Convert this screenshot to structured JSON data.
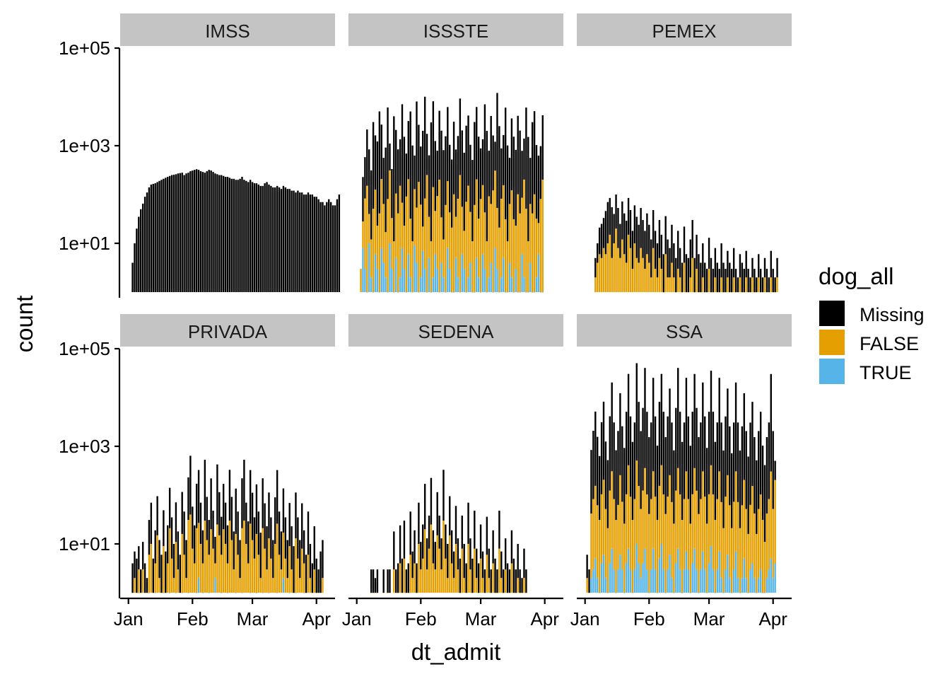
{
  "chart_data": {
    "type": "bar",
    "subtype": "stacked, faceted",
    "x_label": "dt_admit",
    "y_label": "count",
    "y_scale": "log10",
    "y_ticks": [
      "1e+01",
      "1e+03",
      "1e+05"
    ],
    "y_tick_values": [
      10,
      1000,
      100000
    ],
    "ylim": [
      1,
      100000
    ],
    "x_ticks": [
      "Jan",
      "Feb",
      "Mar",
      "Apr"
    ],
    "x_tick_values": [
      "2020-01-01",
      "2020-02-01",
      "2020-03-01",
      "2020-04-01"
    ],
    "xlim": [
      "2019-12-28",
      "2020-04-10"
    ],
    "grid": false,
    "legend": {
      "title": "dog_all",
      "placement": "right",
      "items": [
        {
          "label": "Missing",
          "color": "#000000"
        },
        {
          "label": "FALSE",
          "color": "#E69F00"
        },
        {
          "label": "TRUE",
          "color": "#56B4E9"
        }
      ]
    },
    "strip_fill": "#C4C4C4",
    "facets": [
      {
        "name": "IMSS",
        "start": "2020-01-03",
        "day_step": 1,
        "missing": [
          4,
          10,
          20,
          35,
          50,
          65,
          90,
          110,
          140,
          160,
          165,
          170,
          180,
          190,
          200,
          210,
          220,
          230,
          240,
          250,
          255,
          260,
          270,
          275,
          280,
          250,
          270,
          280,
          300,
          310,
          320,
          330,
          320,
          300,
          290,
          280,
          300,
          320,
          310,
          290,
          270,
          260,
          250,
          250,
          240,
          230,
          230,
          220,
          210,
          210,
          200,
          200,
          210,
          230,
          200,
          190,
          180,
          200,
          180,
          170,
          170,
          160,
          150,
          150,
          170,
          180,
          160,
          150,
          140,
          140,
          150,
          140,
          130,
          150,
          140,
          130,
          130,
          120,
          120,
          110,
          120,
          110,
          110,
          100,
          100,
          110,
          100,
          100,
          90,
          90,
          80,
          70,
          70,
          60,
          70,
          80,
          70,
          60,
          60,
          80,
          100
        ],
        "false": null,
        "true": null
      },
      {
        "name": "ISSSTE",
        "start": "2020-01-02",
        "day_step": 1,
        "missing": [
          0,
          0,
          200,
          500,
          2000,
          800,
          300,
          3000,
          1500,
          1200,
          5000,
          2500,
          500,
          900,
          6000,
          800,
          300,
          4000,
          2000,
          800,
          1200,
          7000,
          1500,
          600,
          3000,
          5000,
          1000,
          500,
          8000,
          2500,
          900,
          2000,
          10000,
          1500,
          600,
          3000,
          8000,
          1200,
          700,
          5000,
          2000,
          800,
          1500,
          6000,
          1000,
          500,
          3000,
          800,
          1500,
          9000,
          2000,
          700,
          2500,
          4000,
          1000,
          500,
          3000,
          6000,
          1500,
          800,
          1200,
          7000,
          2000,
          700,
          4000,
          1500,
          900,
          12000,
          2500,
          800,
          1500,
          6000,
          1000,
          500,
          3500,
          1500,
          800,
          4000,
          2000,
          700,
          1200,
          6000,
          1500,
          500,
          3000,
          5000,
          1000,
          600,
          900,
          4000
        ],
        "false": [
          0,
          3,
          20,
          80,
          150,
          30,
          10,
          50,
          120,
          20,
          40,
          200,
          60,
          15,
          80,
          300,
          30,
          10,
          100,
          40,
          150,
          60,
          20,
          90,
          200,
          30,
          10,
          120,
          50,
          180,
          60,
          15,
          80,
          250,
          30,
          10,
          140,
          40,
          90,
          200,
          30,
          10,
          60,
          180,
          40,
          20,
          100,
          30,
          80,
          250,
          50,
          15,
          70,
          150,
          40,
          10,
          60,
          200,
          30,
          80,
          150,
          40,
          10,
          90,
          60,
          120,
          300,
          50,
          20,
          80,
          150,
          30,
          10,
          60,
          120,
          30,
          20,
          100,
          40,
          80,
          200,
          50,
          10,
          60,
          40,
          100,
          30,
          20,
          80,
          200
        ],
        "true": [
          0,
          0,
          8,
          3,
          1,
          10,
          2,
          1,
          6,
          3,
          1,
          8,
          4,
          2,
          1,
          10,
          3,
          1,
          5,
          1,
          2,
          8,
          3,
          1,
          6,
          2,
          1,
          9,
          4,
          1,
          2,
          7,
          3,
          1,
          5,
          1,
          2,
          6,
          3,
          1,
          4,
          2,
          1,
          8,
          3,
          1,
          1,
          5,
          2,
          1,
          6,
          3,
          1,
          2,
          4,
          1,
          1,
          5,
          2,
          1,
          6,
          3,
          1,
          2,
          4,
          1,
          8,
          3,
          1,
          2,
          5,
          1,
          1,
          4,
          2,
          1,
          3,
          1,
          1,
          6,
          2,
          1,
          1,
          4,
          1,
          1,
          2,
          6,
          1,
          1
        ]
      },
      {
        "name": "PEMEX",
        "start": "2020-01-05",
        "day_step": 1,
        "missing": [
          0,
          3,
          6,
          15,
          20,
          25,
          40,
          60,
          70,
          50,
          30,
          80,
          45,
          20,
          60,
          35,
          25,
          70,
          40,
          15,
          50,
          30,
          20,
          45,
          25,
          15,
          35,
          20,
          10,
          40,
          15,
          8,
          25,
          12,
          5,
          30,
          10,
          6,
          20,
          8,
          4,
          15,
          6,
          3,
          18,
          5,
          4,
          10,
          25,
          4,
          12,
          5,
          3,
          8,
          3,
          2,
          10,
          4,
          2,
          6,
          3,
          2,
          8,
          3,
          2,
          5,
          3,
          2,
          6,
          2,
          1,
          4,
          3,
          2,
          5,
          2,
          1,
          3,
          2,
          1,
          4,
          2,
          1,
          3,
          2,
          1,
          5,
          2,
          1,
          3
        ],
        "false": [
          0,
          2,
          4,
          6,
          5,
          8,
          6,
          10,
          15,
          5,
          10,
          20,
          8,
          5,
          12,
          6,
          4,
          15,
          8,
          3,
          10,
          5,
          4,
          8,
          5,
          3,
          6,
          4,
          2,
          8,
          3,
          2,
          5,
          3,
          1,
          6,
          2,
          2,
          4,
          2,
          1,
          3,
          2,
          1,
          4,
          1,
          1,
          2,
          5,
          1,
          3,
          1,
          1,
          2,
          1,
          1,
          3,
          1,
          1,
          2,
          1,
          1,
          2,
          1,
          1,
          2,
          1,
          1,
          2,
          1,
          1,
          2,
          1,
          1,
          2,
          1,
          1,
          2,
          1,
          1,
          2,
          1,
          1,
          2,
          1,
          1,
          2,
          1,
          1,
          2
        ],
        "true": null
      },
      {
        "name": "PRIVADA",
        "start": "2020-01-03",
        "day_step": 1,
        "missing": [
          3,
          5,
          4,
          6,
          2,
          8,
          3,
          1,
          25,
          60,
          4,
          15,
          80,
          10,
          5,
          40,
          6,
          20,
          120,
          30,
          8,
          60,
          15,
          5,
          100,
          40,
          10,
          200,
          600,
          50,
          20,
          150,
          300,
          60,
          15,
          500,
          80,
          25,
          200,
          40,
          10,
          400,
          100,
          30,
          150,
          60,
          20,
          300,
          80,
          15,
          120,
          40,
          10,
          200,
          500,
          60,
          25,
          300,
          100,
          30,
          150,
          40,
          15,
          200,
          60,
          20,
          100,
          30,
          10,
          80,
          300,
          40,
          15,
          120,
          30,
          10,
          60,
          20,
          8,
          100,
          30,
          10,
          60,
          15,
          5,
          40,
          8,
          3,
          20,
          4,
          2,
          6,
          10
        ],
        "false": [
          1,
          2,
          1,
          2,
          1,
          3,
          1,
          1,
          5,
          10,
          1,
          3,
          15,
          2,
          1,
          8,
          1,
          4,
          20,
          5,
          2,
          10,
          3,
          1,
          15,
          6,
          2,
          30,
          40,
          8,
          4,
          20,
          25,
          10,
          3,
          30,
          12,
          5,
          20,
          8,
          2,
          25,
          15,
          5,
          20,
          10,
          3,
          30,
          12,
          3,
          15,
          6,
          2,
          20,
          30,
          10,
          4,
          25,
          12,
          5,
          15,
          6,
          2,
          20,
          8,
          3,
          12,
          5,
          2,
          10,
          25,
          6,
          3,
          15,
          5,
          2,
          8,
          3,
          1,
          12,
          5,
          2,
          8,
          3,
          1,
          6,
          2,
          1,
          3,
          1,
          1,
          1,
          2
        ],
        "true": [
          0,
          0,
          0,
          1,
          0,
          0,
          0,
          0,
          1,
          0,
          0,
          1,
          0,
          0,
          0,
          1,
          0,
          0,
          1,
          0,
          0,
          1,
          0,
          0,
          1,
          0,
          0,
          1,
          0,
          0,
          0,
          1,
          2,
          0,
          1,
          0,
          0,
          1,
          0,
          0,
          2,
          0,
          0,
          1,
          0,
          0,
          1,
          0,
          0,
          0,
          1,
          0,
          0,
          1,
          0,
          0,
          0,
          1,
          0,
          0,
          1,
          0,
          0,
          1,
          0,
          0,
          1,
          0,
          0,
          0,
          1,
          0,
          0,
          2,
          0,
          0,
          1,
          0,
          0,
          1,
          0,
          0,
          0,
          1,
          0,
          0,
          0,
          0,
          0,
          0,
          0,
          0,
          0
        ]
      },
      {
        "name": "SEDENA",
        "start": "2020-01-05",
        "day_step": 1,
        "missing": [
          0,
          0,
          0,
          2,
          2,
          1,
          2,
          0,
          0,
          2,
          0,
          2,
          2,
          0,
          15,
          2,
          3,
          20,
          4,
          25,
          2,
          3,
          40,
          5,
          15,
          3,
          60,
          8,
          20,
          150,
          10,
          30,
          200,
          15,
          8,
          100,
          30,
          10,
          300,
          20,
          8,
          80,
          15,
          5,
          50,
          10,
          4,
          30,
          8,
          3,
          60,
          10,
          4,
          40,
          6,
          3,
          20,
          5,
          2,
          30,
          6,
          2,
          15,
          4,
          2,
          40,
          5,
          2,
          10,
          3,
          2,
          15,
          4,
          2,
          8,
          2,
          1,
          6,
          2
        ],
        "false": [
          0,
          0,
          0,
          1,
          1,
          1,
          1,
          0,
          0,
          1,
          0,
          1,
          1,
          0,
          3,
          1,
          1,
          4,
          1,
          5,
          1,
          1,
          6,
          2,
          4,
          1,
          10,
          3,
          5,
          20,
          3,
          8,
          25,
          4,
          3,
          15,
          8,
          3,
          30,
          5,
          2,
          15,
          4,
          2,
          10,
          3,
          1,
          8,
          2,
          1,
          10,
          3,
          1,
          8,
          2,
          1,
          5,
          2,
          1,
          6,
          2,
          1,
          4,
          1,
          1,
          8,
          2,
          1,
          3,
          1,
          1,
          4,
          1,
          1,
          2,
          1,
          1,
          2,
          1
        ],
        "true": null
      },
      {
        "name": "SSA",
        "start": "2020-01-02",
        "day_step": 1,
        "missing": [
          4,
          2,
          800,
          2000,
          5000,
          1500,
          600,
          3000,
          8000,
          1200,
          500,
          4000,
          20000,
          3000,
          800,
          2000,
          12000,
          2500,
          900,
          5000,
          30000,
          4000,
          1200,
          3000,
          50000,
          8000,
          2000,
          6000,
          40000,
          5000,
          1500,
          3000,
          25000,
          4000,
          1000,
          8000,
          30000,
          5000,
          1500,
          4000,
          15000,
          3000,
          800,
          6000,
          40000,
          5000,
          1200,
          3000,
          25000,
          4000,
          1000,
          5000,
          30000,
          6000,
          1500,
          3000,
          20000,
          4000,
          900,
          5000,
          35000,
          5000,
          1200,
          3000,
          25000,
          3000,
          800,
          4000,
          15000,
          2500,
          700,
          3000,
          20000,
          3000,
          800,
          2500,
          12000,
          2000,
          600,
          3000,
          8000,
          1500,
          500,
          2000,
          5000,
          1000,
          400,
          1500,
          3000,
          30000,
          2000,
          300
        ],
        "false": [
          2,
          1,
          40,
          80,
          150,
          60,
          30,
          100,
          200,
          50,
          20,
          120,
          300,
          80,
          30,
          60,
          250,
          70,
          25,
          100,
          400,
          90,
          30,
          80,
          500,
          150,
          50,
          120,
          350,
          100,
          40,
          80,
          300,
          90,
          30,
          150,
          400,
          100,
          40,
          90,
          250,
          70,
          25,
          120,
          350,
          100,
          30,
          80,
          300,
          80,
          25,
          100,
          350,
          120,
          40,
          80,
          300,
          90,
          25,
          100,
          400,
          100,
          30,
          80,
          300,
          70,
          20,
          90,
          250,
          60,
          20,
          70,
          300,
          70,
          20,
          60,
          200,
          50,
          15,
          60,
          150,
          40,
          15,
          50,
          100,
          30,
          10,
          40,
          80,
          300,
          50,
          200
        ],
        "true": [
          0,
          0,
          2,
          3,
          5,
          2,
          1,
          4,
          6,
          2,
          1,
          4,
          8,
          3,
          1,
          3,
          6,
          3,
          1,
          4,
          8,
          3,
          1,
          3,
          10,
          4,
          2,
          4,
          8,
          3,
          1,
          3,
          8,
          3,
          1,
          5,
          10,
          3,
          1,
          3,
          6,
          2,
          1,
          4,
          8,
          3,
          1,
          3,
          7,
          3,
          1,
          4,
          8,
          3,
          1,
          3,
          7,
          3,
          1,
          4,
          9,
          3,
          1,
          3,
          7,
          2,
          1,
          3,
          6,
          2,
          1,
          3,
          7,
          2,
          1,
          2,
          5,
          2,
          1,
          3,
          4,
          2,
          1,
          2,
          3,
          1,
          1,
          2,
          3,
          5,
          2,
          4
        ]
      }
    ]
  }
}
